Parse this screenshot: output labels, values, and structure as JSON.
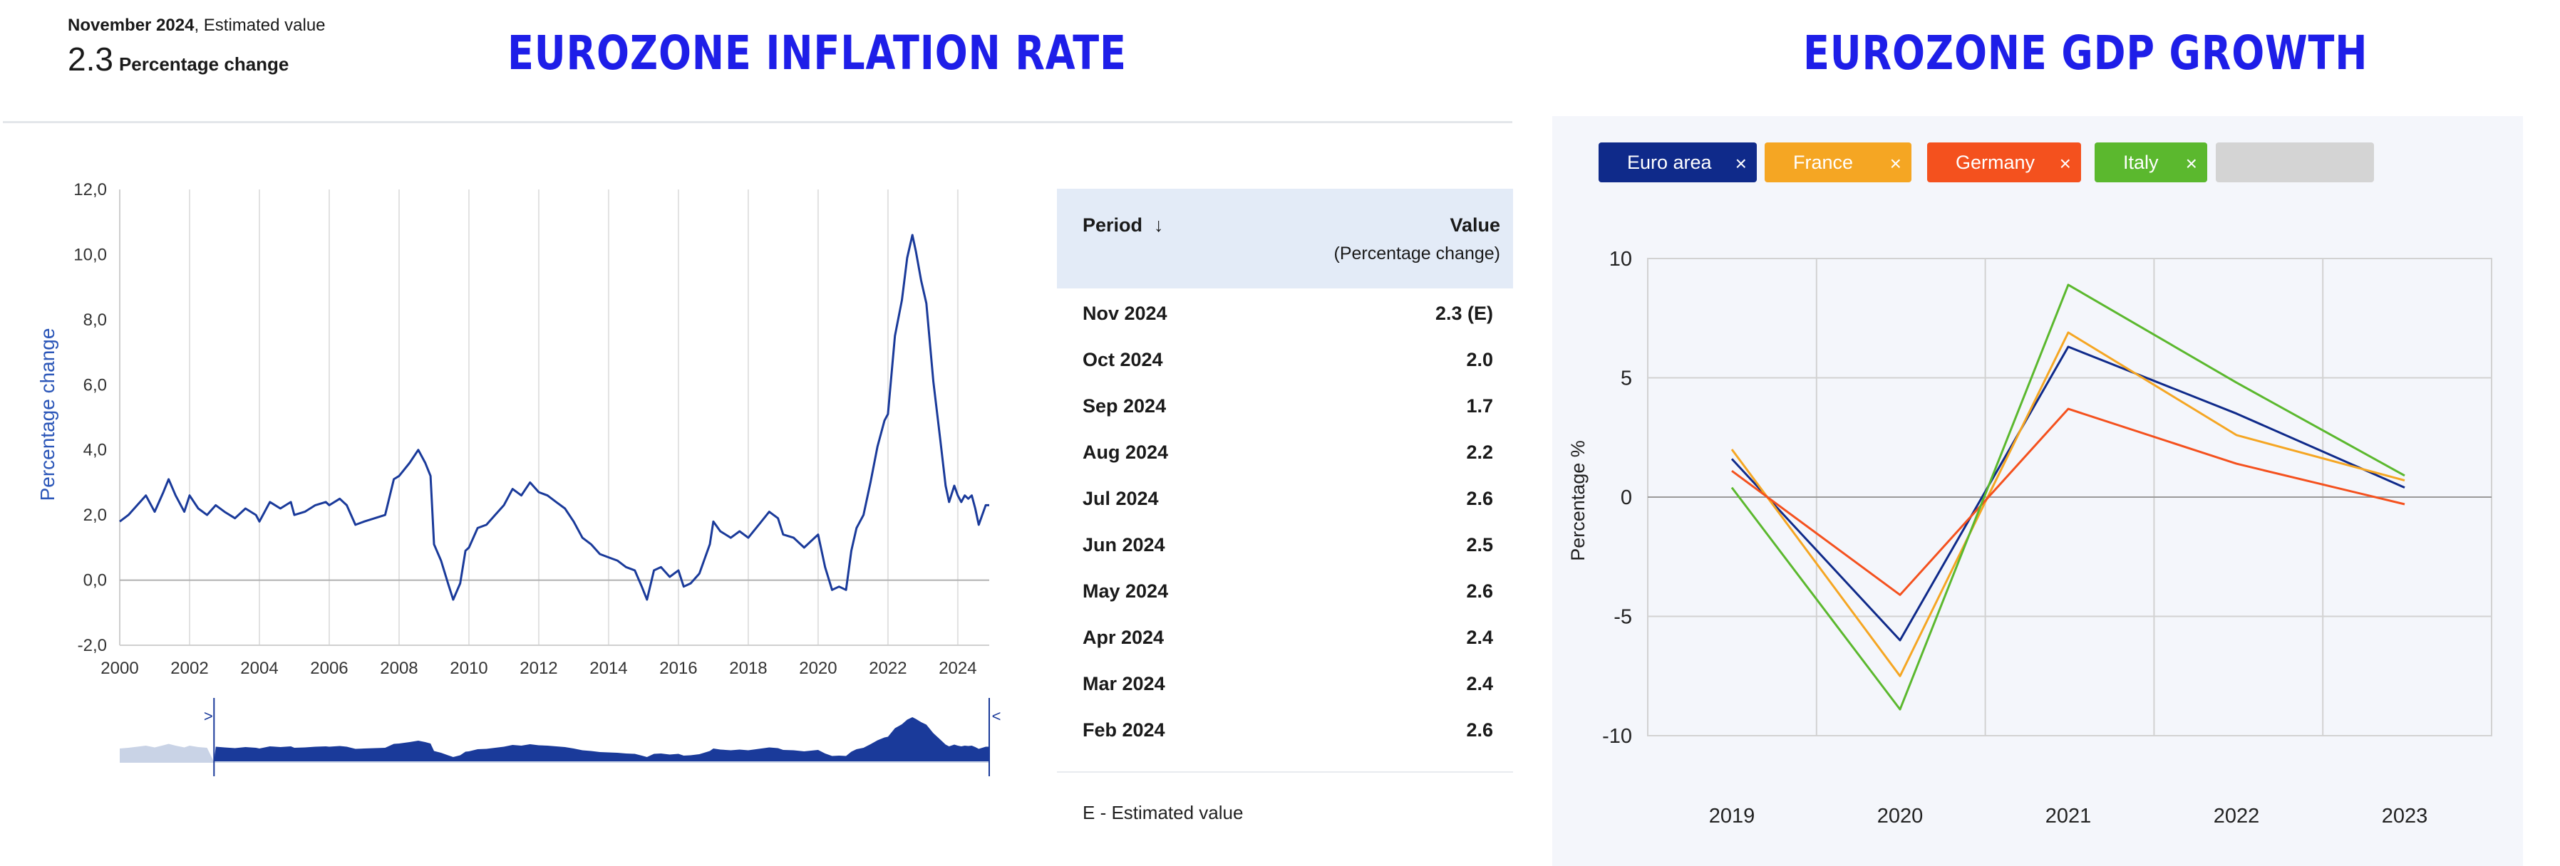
{
  "headline": {
    "period": "November 2024",
    "note": ", Estimated value",
    "value": "2.3",
    "unit": "Percentage change"
  },
  "titles": {
    "left": "EUROZONE INFLATION RATE",
    "right": "EUROZONE GDP GROWTH"
  },
  "table": {
    "col_period": "Period",
    "sort_icon": "↓",
    "col_value": "Value",
    "col_value_sub": "(Percentage change)",
    "rows": [
      {
        "period": "Nov 2024",
        "value": "2.3 (E)"
      },
      {
        "period": "Oct 2024",
        "value": "2.0"
      },
      {
        "period": "Sep 2024",
        "value": "1.7"
      },
      {
        "period": "Aug 2024",
        "value": "2.2"
      },
      {
        "period": "Jul 2024",
        "value": "2.6"
      },
      {
        "period": "Jun 2024",
        "value": "2.5"
      },
      {
        "period": "May 2024",
        "value": "2.6"
      },
      {
        "period": "Apr 2024",
        "value": "2.4"
      },
      {
        "period": "Mar 2024",
        "value": "2.4"
      },
      {
        "period": "Feb 2024",
        "value": "2.6"
      }
    ],
    "footnote": "E - Estimated value"
  },
  "chips": [
    {
      "label": "Euro area",
      "color": "#0f2a8a",
      "close": "×"
    },
    {
      "label": "France",
      "color": "#f5a623",
      "close": "×"
    },
    {
      "label": "Germany",
      "color": "#f4511e",
      "close": "×"
    },
    {
      "label": "Italy",
      "color": "#5bb82e",
      "close": "×"
    },
    {
      "label": "",
      "color": "#d4d4d4",
      "close": ""
    }
  ],
  "chart_data": [
    {
      "type": "line",
      "ylabel": "Percentage change",
      "ylim": [
        -2,
        12
      ],
      "xlim": [
        2000,
        2024.9
      ],
      "y_ticks": [
        "-2,0",
        "0,0",
        "2,0",
        "4,0",
        "6,0",
        "8,0",
        "10,0",
        "12,0"
      ],
      "x_ticks": [
        "2000",
        "2002",
        "2004",
        "2006",
        "2008",
        "2010",
        "2012",
        "2014",
        "2016",
        "2018",
        "2020",
        "2022",
        "2024"
      ],
      "grid": "vertical",
      "series": [
        {
          "color": "#1a3a9a",
          "x": [
            2000.0,
            2000.25,
            2000.5,
            2000.75,
            2001.0,
            2001.25,
            2001.4,
            2001.6,
            2001.85,
            2002.0,
            2002.25,
            2002.5,
            2002.75,
            2003.0,
            2003.3,
            2003.6,
            2003.9,
            2004.0,
            2004.3,
            2004.6,
            2004.9,
            2005.0,
            2005.3,
            2005.6,
            2005.9,
            2006.0,
            2006.3,
            2006.5,
            2006.75,
            2007.0,
            2007.3,
            2007.6,
            2007.85,
            2008.0,
            2008.3,
            2008.55,
            2008.75,
            2008.9,
            2009.0,
            2009.2,
            2009.4,
            2009.55,
            2009.75,
            2009.9,
            2010.0,
            2010.25,
            2010.5,
            2010.75,
            2011.0,
            2011.25,
            2011.5,
            2011.75,
            2012.0,
            2012.25,
            2012.5,
            2012.75,
            2013.0,
            2013.25,
            2013.5,
            2013.75,
            2014.0,
            2014.25,
            2014.5,
            2014.75,
            2014.95,
            2015.1,
            2015.3,
            2015.5,
            2015.75,
            2016.0,
            2016.15,
            2016.35,
            2016.6,
            2016.9,
            2017.0,
            2017.2,
            2017.5,
            2017.75,
            2018.0,
            2018.3,
            2018.6,
            2018.85,
            2019.0,
            2019.3,
            2019.6,
            2019.9,
            2020.0,
            2020.2,
            2020.4,
            2020.6,
            2020.8,
            2020.95,
            2021.1,
            2021.3,
            2021.5,
            2021.7,
            2021.9,
            2022.0,
            2022.2,
            2022.4,
            2022.55,
            2022.7,
            2022.8,
            2022.95,
            2023.1,
            2023.3,
            2023.5,
            2023.65,
            2023.75,
            2023.9,
            2024.0,
            2024.1,
            2024.2,
            2024.3,
            2024.4,
            2024.5,
            2024.6,
            2024.7,
            2024.8,
            2024.9
          ],
          "y": [
            1.8,
            2.0,
            2.3,
            2.6,
            2.1,
            2.7,
            3.1,
            2.6,
            2.1,
            2.6,
            2.2,
            2.0,
            2.3,
            2.1,
            1.9,
            2.2,
            2.0,
            1.8,
            2.4,
            2.2,
            2.4,
            2.0,
            2.1,
            2.3,
            2.4,
            2.3,
            2.5,
            2.3,
            1.7,
            1.8,
            1.9,
            2.0,
            3.1,
            3.2,
            3.6,
            4.0,
            3.6,
            3.2,
            1.1,
            0.6,
            -0.1,
            -0.6,
            -0.1,
            0.9,
            1.0,
            1.6,
            1.7,
            2.0,
            2.3,
            2.8,
            2.6,
            3.0,
            2.7,
            2.6,
            2.4,
            2.2,
            1.8,
            1.3,
            1.1,
            0.8,
            0.7,
            0.6,
            0.4,
            0.3,
            -0.2,
            -0.6,
            0.3,
            0.4,
            0.1,
            0.3,
            -0.2,
            -0.1,
            0.2,
            1.1,
            1.8,
            1.5,
            1.3,
            1.5,
            1.3,
            1.7,
            2.1,
            1.9,
            1.4,
            1.3,
            1.0,
            1.3,
            1.4,
            0.4,
            -0.3,
            -0.2,
            -0.3,
            0.9,
            1.6,
            2.0,
            3.0,
            4.1,
            4.9,
            5.1,
            7.5,
            8.6,
            9.9,
            10.6,
            10.1,
            9.2,
            8.5,
            6.1,
            4.3,
            2.9,
            2.4,
            2.9,
            2.6,
            2.4,
            2.6,
            2.5,
            2.6,
            2.2,
            1.7,
            2.0,
            2.3,
            2.3
          ]
        }
      ]
    },
    {
      "type": "line",
      "ylabel": "Percentage %",
      "ylim": [
        -10,
        10
      ],
      "y_ticks": [
        "10",
        "5",
        "0",
        "-5",
        "-10"
      ],
      "categories": [
        "2019",
        "2020",
        "2021",
        "2022",
        "2023"
      ],
      "grid": true,
      "series": [
        {
          "name": "Euro area",
          "color": "#0f2a8a",
          "values": [
            1.6,
            -6.0,
            6.3,
            3.5,
            0.4
          ]
        },
        {
          "name": "France",
          "color": "#f5a623",
          "values": [
            2.0,
            -7.5,
            6.9,
            2.6,
            0.7
          ]
        },
        {
          "name": "Germany",
          "color": "#f4511e",
          "values": [
            1.1,
            -4.1,
            3.7,
            1.4,
            -0.3
          ]
        },
        {
          "name": "Italy",
          "color": "#5bb82e",
          "values": [
            0.4,
            -8.9,
            8.9,
            4.8,
            0.9
          ]
        }
      ]
    }
  ]
}
